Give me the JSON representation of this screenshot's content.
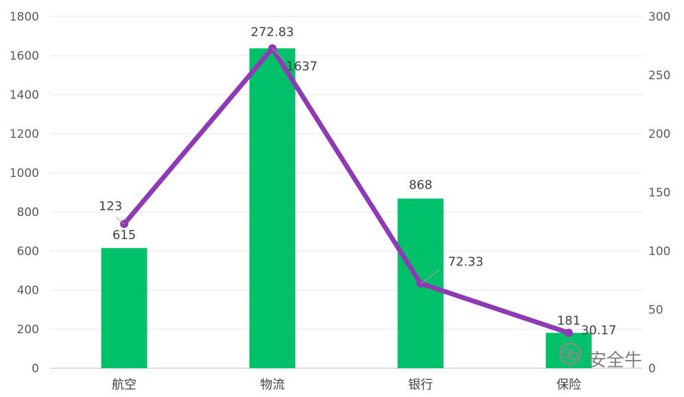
{
  "chart_data": {
    "type": "bar",
    "categories": [
      "航空",
      "物流",
      "银行",
      "保险"
    ],
    "series": [
      {
        "type": "bar",
        "axis": "left",
        "color": "#00c16a",
        "values": [
          615,
          1637,
          868,
          181
        ]
      },
      {
        "type": "line",
        "axis": "right",
        "color": "#8f3ab5",
        "values": [
          123,
          272.83,
          72.33,
          30.17
        ]
      }
    ],
    "y_left": {
      "min": 0,
      "max": 1800,
      "ticks": [
        "0",
        "200",
        "400",
        "600",
        "800",
        "1000",
        "1200",
        "1400",
        "1600",
        "1800"
      ]
    },
    "y_right": {
      "min": 0,
      "max": 300,
      "ticks": [
        "0",
        "50",
        "100",
        "150",
        "200",
        "250",
        "300"
      ]
    },
    "data_labels": {
      "bars": [
        "615",
        "1637",
        "868",
        "181"
      ],
      "line": [
        "123",
        "272.83",
        "72.33",
        "30.17"
      ]
    },
    "grid": true,
    "legend": "none"
  },
  "watermark": {
    "text": "安全牛",
    "icon": "wechat-icon"
  }
}
